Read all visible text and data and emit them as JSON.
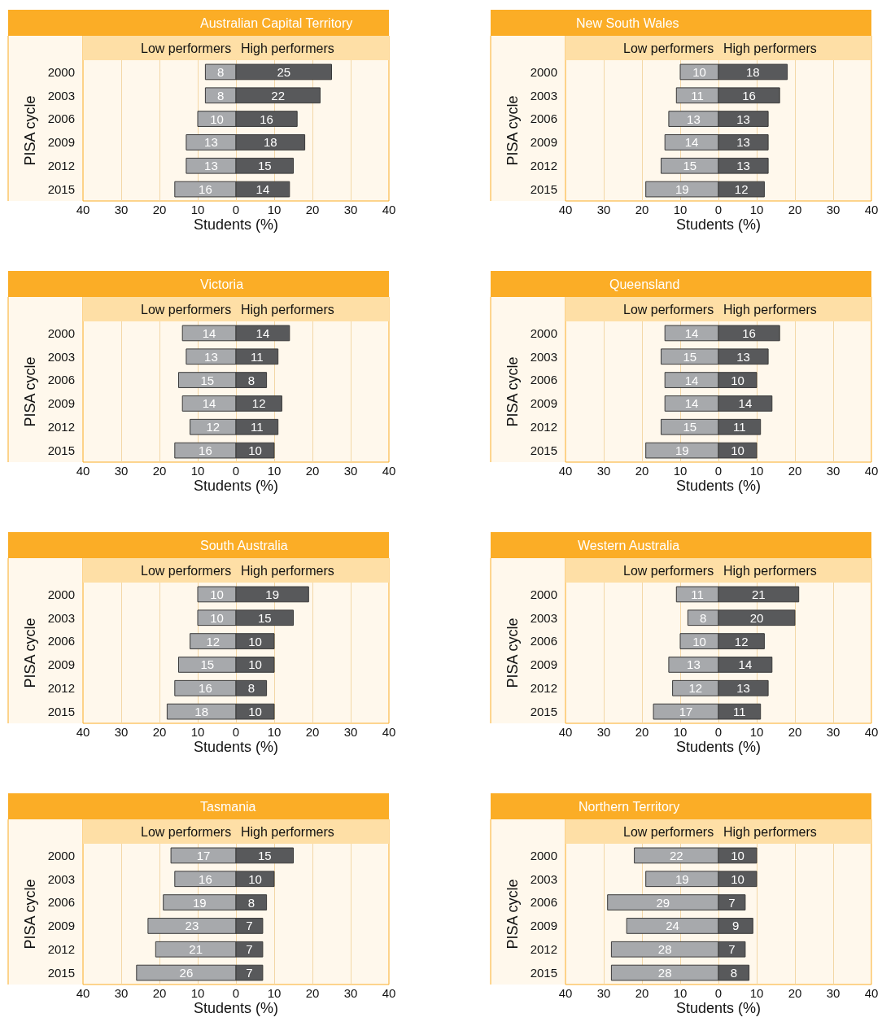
{
  "chart_data": [
    {
      "type": "bar",
      "orientation": "horizontal",
      "title": "Australian Capital Territory",
      "xlabel": "Students (%)",
      "ylabel": "PISA cycle",
      "categories": [
        "2000",
        "2003",
        "2006",
        "2009",
        "2012",
        "2015"
      ],
      "xlim": [
        -40,
        40
      ],
      "xticks": [
        {
          "value": -40,
          "label": "40"
        },
        {
          "value": -30,
          "label": "30"
        },
        {
          "value": -20,
          "label": "20"
        },
        {
          "value": -10,
          "label": "10"
        },
        0,
        10,
        20,
        30,
        40
      ],
      "grid": "x",
      "data_labels": true,
      "series": [
        {
          "name": "Low performers",
          "color": "#a7a9ac",
          "values": [
            8,
            8,
            10,
            13,
            13,
            16
          ],
          "base": [
            -8,
            -8,
            -10,
            -13,
            -13,
            -16
          ]
        },
        {
          "name": "High performers",
          "color": "#58595b",
          "values": [
            25,
            22,
            16,
            18,
            15,
            14
          ]
        }
      ]
    },
    {
      "type": "bar",
      "orientation": "horizontal",
      "title": "New South Wales",
      "xlabel": "Students (%)",
      "ylabel": "PISA cycle",
      "categories": [
        "2000",
        "2003",
        "2006",
        "2009",
        "2012",
        "2015"
      ],
      "xlim": [
        -40,
        40
      ],
      "xticks": [
        {
          "value": -40,
          "label": "40"
        },
        {
          "value": -30,
          "label": "30"
        },
        {
          "value": -20,
          "label": "20"
        },
        {
          "value": -10,
          "label": "10"
        },
        0,
        10,
        20,
        30,
        40
      ],
      "grid": "x",
      "data_labels": true,
      "series": [
        {
          "name": "Low performers",
          "color": "#a7a9ac",
          "values": [
            10,
            11,
            13,
            14,
            15,
            19
          ],
          "base": [
            -10,
            -11,
            -13,
            -14,
            -15,
            -19
          ]
        },
        {
          "name": "High performers",
          "color": "#58595b",
          "values": [
            18,
            16,
            13,
            13,
            13,
            12
          ]
        }
      ]
    },
    {
      "type": "bar",
      "orientation": "horizontal",
      "title": "Victoria",
      "xlabel": "Students (%)",
      "ylabel": "PISA cycle",
      "categories": [
        "2000",
        "2003",
        "2006",
        "2009",
        "2012",
        "2015"
      ],
      "xlim": [
        -40,
        40
      ],
      "xticks": [
        {
          "value": -40,
          "label": "40"
        },
        {
          "value": -30,
          "label": "30"
        },
        {
          "value": -20,
          "label": "20"
        },
        {
          "value": -10,
          "label": "10"
        },
        0,
        10,
        20,
        30,
        40
      ],
      "grid": "x",
      "data_labels": true,
      "series": [
        {
          "name": "Low performers",
          "color": "#a7a9ac",
          "values": [
            14,
            13,
            15,
            14,
            12,
            16
          ],
          "base": [
            -14,
            -13,
            -15,
            -14,
            -12,
            -16
          ]
        },
        {
          "name": "High performers",
          "color": "#58595b",
          "values": [
            14,
            11,
            8,
            12,
            11,
            10
          ]
        }
      ]
    },
    {
      "type": "bar",
      "orientation": "horizontal",
      "title": "Queensland",
      "xlabel": "Students (%)",
      "ylabel": "PISA cycle",
      "categories": [
        "2000",
        "2003",
        "2006",
        "2009",
        "2012",
        "2015"
      ],
      "xlim": [
        -40,
        40
      ],
      "xticks": [
        {
          "value": -40,
          "label": "40"
        },
        {
          "value": -30,
          "label": "30"
        },
        {
          "value": -20,
          "label": "20"
        },
        {
          "value": -10,
          "label": "10"
        },
        0,
        10,
        20,
        30,
        40
      ],
      "grid": "x",
      "data_labels": true,
      "series": [
        {
          "name": "Low performers",
          "color": "#a7a9ac",
          "values": [
            14,
            15,
            14,
            14,
            15,
            19
          ],
          "base": [
            -14,
            -15,
            -14,
            -14,
            -15,
            -19
          ]
        },
        {
          "name": "High performers",
          "color": "#58595b",
          "values": [
            16,
            13,
            10,
            14,
            11,
            10
          ]
        }
      ]
    },
    {
      "type": "bar",
      "orientation": "horizontal",
      "title": "South Australia",
      "xlabel": "Students (%)",
      "ylabel": "PISA cycle",
      "categories": [
        "2000",
        "2003",
        "2006",
        "2009",
        "2012",
        "2015"
      ],
      "xlim": [
        -40,
        40
      ],
      "xticks": [
        {
          "value": -40,
          "label": "40"
        },
        {
          "value": -30,
          "label": "30"
        },
        {
          "value": -20,
          "label": "20"
        },
        {
          "value": -10,
          "label": "10"
        },
        0,
        10,
        20,
        30,
        40
      ],
      "grid": "x",
      "data_labels": true,
      "series": [
        {
          "name": "Low performers",
          "color": "#a7a9ac",
          "values": [
            10,
            10,
            12,
            15,
            16,
            18
          ],
          "base": [
            -10,
            -10,
            -12,
            -15,
            -16,
            -18
          ]
        },
        {
          "name": "High performers",
          "color": "#58595b",
          "values": [
            19,
            15,
            10,
            10,
            8,
            10
          ]
        }
      ]
    },
    {
      "type": "bar",
      "orientation": "horizontal",
      "title": "Western Australia",
      "xlabel": "Students (%)",
      "ylabel": "PISA cycle",
      "categories": [
        "2000",
        "2003",
        "2006",
        "2009",
        "2012",
        "2015"
      ],
      "xlim": [
        -40,
        40
      ],
      "xticks": [
        {
          "value": -40,
          "label": "40"
        },
        {
          "value": -30,
          "label": "30"
        },
        {
          "value": -20,
          "label": "20"
        },
        {
          "value": -10,
          "label": "10"
        },
        0,
        10,
        20,
        30,
        40
      ],
      "grid": "x",
      "data_labels": true,
      "series": [
        {
          "name": "Low performers",
          "color": "#a7a9ac",
          "values": [
            11,
            8,
            10,
            13,
            12,
            17
          ],
          "base": [
            -11,
            -8,
            -10,
            -13,
            -12,
            -17
          ]
        },
        {
          "name": "High performers",
          "color": "#58595b",
          "values": [
            21,
            20,
            12,
            14,
            13,
            11
          ]
        }
      ]
    },
    {
      "type": "bar",
      "orientation": "horizontal",
      "title": "Tasmania",
      "xlabel": "Students (%)",
      "ylabel": "PISA cycle",
      "categories": [
        "2000",
        "2003",
        "2006",
        "2009",
        "2012",
        "2015"
      ],
      "xlim": [
        -40,
        40
      ],
      "xticks": [
        {
          "value": -40,
          "label": "40"
        },
        {
          "value": -30,
          "label": "30"
        },
        {
          "value": -20,
          "label": "20"
        },
        {
          "value": -10,
          "label": "10"
        },
        0,
        10,
        20,
        30,
        40
      ],
      "grid": "x",
      "data_labels": true,
      "series": [
        {
          "name": "Low performers",
          "color": "#a7a9ac",
          "values": [
            17,
            16,
            19,
            23,
            21,
            26
          ],
          "base": [
            -17,
            -16,
            -19,
            -23,
            -21,
            -26
          ]
        },
        {
          "name": "High performers",
          "color": "#58595b",
          "values": [
            15,
            10,
            8,
            7,
            7,
            7
          ]
        }
      ]
    },
    {
      "type": "bar",
      "orientation": "horizontal",
      "title": "Northern Territory",
      "xlabel": "Students (%)",
      "ylabel": "PISA cycle",
      "categories": [
        "2000",
        "2003",
        "2006",
        "2009",
        "2012",
        "2015"
      ],
      "xlim": [
        -40,
        40
      ],
      "xticks": [
        {
          "value": -40,
          "label": "40"
        },
        {
          "value": -30,
          "label": "30"
        },
        {
          "value": -20,
          "label": "20"
        },
        {
          "value": -10,
          "label": "10"
        },
        0,
        10,
        20,
        30,
        40
      ],
      "grid": "x",
      "data_labels": true,
      "series": [
        {
          "name": "Low performers",
          "color": "#a7a9ac",
          "values": [
            22,
            19,
            29,
            24,
            28,
            28
          ],
          "base": [
            -22,
            -19,
            -29,
            -24,
            -28,
            -28
          ]
        },
        {
          "name": "High performers",
          "color": "#58595b",
          "values": [
            10,
            10,
            7,
            9,
            7,
            8
          ]
        }
      ]
    }
  ]
}
